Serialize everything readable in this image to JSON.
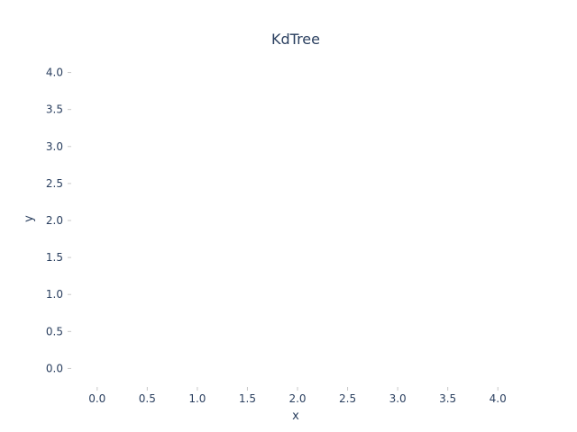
{
  "chart_data": {
    "type": "scatter",
    "title": "KdTree",
    "xlabel": "x",
    "ylabel": "y",
    "xlim": [
      -0.25,
      4.25
    ],
    "ylim": [
      -0.25,
      4.25
    ],
    "x_ticks": [
      "0.0",
      "0.5",
      "1.0",
      "1.5",
      "2.0",
      "2.5",
      "3.0",
      "3.5",
      "4.0"
    ],
    "y_ticks": [
      "0.0",
      "0.5",
      "1.0",
      "1.5",
      "2.0",
      "2.5",
      "3.0",
      "3.5",
      "4.0"
    ],
    "grid": false,
    "series": []
  }
}
